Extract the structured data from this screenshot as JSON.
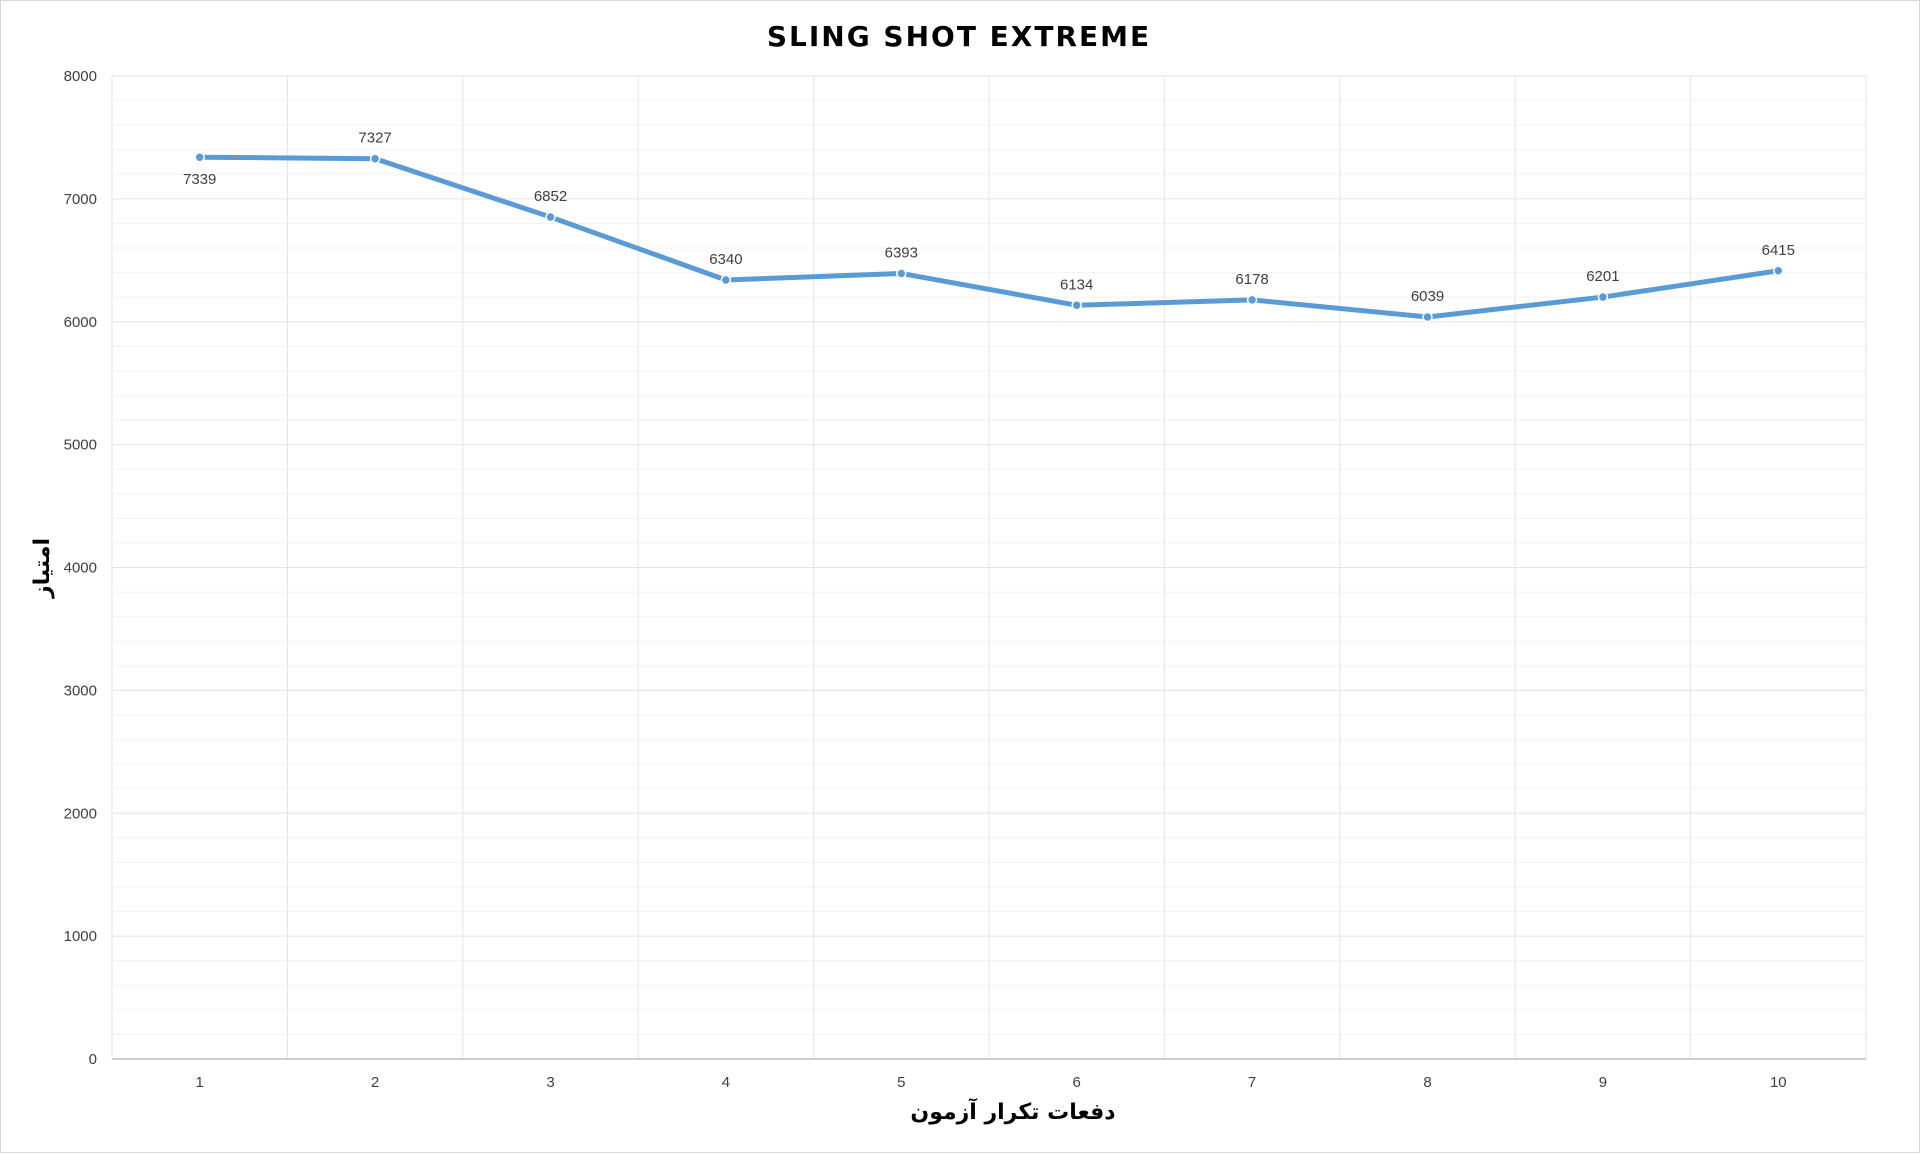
{
  "chart_data": {
    "type": "line",
    "title": "SLING SHOT EXTREME",
    "xlabel": "دفعات تکرار آزمون",
    "ylabel": "امتیاز",
    "categories": [
      "1",
      "2",
      "3",
      "4",
      "5",
      "6",
      "7",
      "8",
      "9",
      "10"
    ],
    "series": [
      {
        "values": [
          7339,
          7327,
          6852,
          6340,
          6393,
          6134,
          6178,
          6039,
          6201,
          6415
        ]
      }
    ],
    "ylim": [
      0,
      8000
    ],
    "yticks": [
      "0",
      "1000",
      "2000",
      "3000",
      "4000",
      "5000",
      "6000",
      "7000",
      "8000"
    ],
    "grid": true,
    "legend": "none",
    "colors": {
      "line": "#5b9bd5",
      "grid": "#e4e4e4",
      "axis": "#bfbfbf"
    }
  }
}
